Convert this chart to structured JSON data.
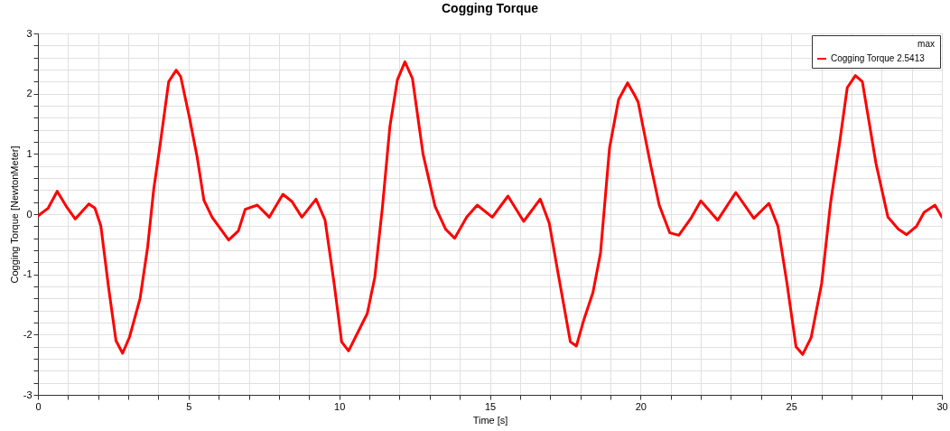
{
  "chart_data": {
    "type": "line",
    "title": "Cogging Torque",
    "xlabel": "Time [s]",
    "ylabel": "Cogging Torque [NewtonMeter]",
    "legend_title": "max",
    "annotations": [
      "2.5413"
    ],
    "legend": "top right",
    "grid": true,
    "line_style": "solid",
    "xlim": [
      0,
      30
    ],
    "ylim": [
      -3,
      3
    ],
    "xticks": [
      0,
      {
        "value": 1,
        "label": null
      },
      {
        "value": 2,
        "label": null
      },
      {
        "value": 3,
        "label": null
      },
      {
        "value": 4,
        "label": null
      },
      5,
      {
        "value": 6,
        "label": null
      },
      {
        "value": 7,
        "label": null
      },
      {
        "value": 8,
        "label": null
      },
      {
        "value": 9,
        "label": null
      },
      10,
      {
        "value": 11,
        "label": null
      },
      {
        "value": 12,
        "label": null
      },
      {
        "value": 13,
        "label": null
      },
      {
        "value": 14,
        "label": null
      },
      15,
      {
        "value": 16,
        "label": null
      },
      {
        "value": 17,
        "label": null
      },
      {
        "value": 18,
        "label": null
      },
      {
        "value": 19,
        "label": null
      },
      20,
      {
        "value": 21,
        "label": null
      },
      {
        "value": 22,
        "label": null
      },
      {
        "value": 23,
        "label": null
      },
      {
        "value": 24,
        "label": null
      },
      25,
      {
        "value": 26,
        "label": null
      },
      {
        "value": 27,
        "label": null
      },
      {
        "value": 28,
        "label": null
      },
      {
        "value": 29,
        "label": null
      },
      30
    ],
    "yticks": [
      -3,
      {
        "value": -2.8,
        "label": null
      },
      {
        "value": -2.6,
        "label": null
      },
      {
        "value": -2.4,
        "label": null
      },
      {
        "value": -2.2,
        "label": null
      },
      -2,
      {
        "value": -1.8,
        "label": null
      },
      {
        "value": -1.6,
        "label": null
      },
      {
        "value": -1.4,
        "label": null
      },
      {
        "value": -1.2,
        "label": null
      },
      -1,
      {
        "value": -0.8,
        "label": null
      },
      {
        "value": -0.6,
        "label": null
      },
      {
        "value": -0.4,
        "label": null
      },
      {
        "value": -0.2,
        "label": null
      },
      0,
      {
        "value": 0.2,
        "label": null
      },
      {
        "value": 0.4,
        "label": null
      },
      {
        "value": 0.6,
        "label": null
      },
      {
        "value": 0.8,
        "label": null
      },
      1,
      {
        "value": 1.2,
        "label": null
      },
      {
        "value": 1.4,
        "label": null
      },
      {
        "value": 1.6,
        "label": null
      },
      {
        "value": 1.8,
        "label": null
      },
      2,
      {
        "value": 2.2,
        "label": null
      },
      {
        "value": 2.4,
        "label": null
      },
      {
        "value": 2.6,
        "label": null
      },
      {
        "value": 2.8,
        "label": null
      },
      3
    ],
    "series": [
      {
        "name": "Cogging Torque",
        "color": "#ff0000",
        "x": [
          0,
          0.34,
          0.64,
          0.94,
          1.24,
          1.69,
          1.89,
          2.09,
          2.34,
          2.59,
          2.81,
          3.04,
          3.39,
          3.64,
          3.84,
          4.04,
          4.34,
          4.59,
          4.74,
          5.03,
          5.28,
          5.51,
          5.78,
          6.33,
          6.65,
          6.88,
          7.28,
          7.68,
          8.13,
          8.43,
          8.76,
          9.23,
          9.53,
          9.83,
          10.08,
          10.31,
          10.63,
          10.93,
          11.18,
          11.43,
          11.68,
          11.93,
          12.18,
          12.43,
          12.78,
          13.18,
          13.53,
          13.83,
          14.23,
          14.58,
          15.08,
          15.6,
          16.12,
          16.67,
          16.97,
          17.27,
          17.67,
          17.87,
          18.12,
          18.42,
          18.67,
          18.97,
          19.27,
          19.57,
          19.82,
          19.92,
          20.32,
          20.62,
          20.97,
          21.27,
          21.67,
          22.0,
          22.56,
          23.16,
          23.76,
          24.26,
          24.56,
          24.86,
          25.16,
          25.38,
          25.66,
          26.01,
          26.31,
          26.61,
          26.86,
          27.13,
          27.36,
          27.81,
          28.21,
          28.56,
          28.83,
          29.16,
          29.41,
          29.77,
          30
        ],
        "values": [
          -0.03,
          0.1,
          0.38,
          0.13,
          -0.08,
          0.17,
          0.1,
          -0.2,
          -1.2,
          -2.1,
          -2.31,
          -2.04,
          -1.4,
          -0.55,
          0.4,
          1.1,
          2.2,
          2.39,
          2.28,
          1.6,
          0.96,
          0.23,
          -0.05,
          -0.43,
          -0.28,
          0.08,
          0.15,
          -0.05,
          0.33,
          0.21,
          -0.05,
          0.25,
          -0.1,
          -1.15,
          -2.12,
          -2.27,
          -1.95,
          -1.65,
          -1.05,
          0.1,
          1.45,
          2.23,
          2.53,
          2.25,
          1.0,
          0.13,
          -0.25,
          -0.4,
          -0.05,
          0.15,
          -0.05,
          0.3,
          -0.12,
          0.25,
          -0.15,
          -1.0,
          -2.12,
          -2.19,
          -1.75,
          -1.3,
          -0.65,
          1.1,
          1.9,
          2.18,
          1.96,
          1.86,
          0.85,
          0.15,
          -0.31,
          -0.35,
          -0.07,
          0.22,
          -0.1,
          0.36,
          -0.07,
          0.18,
          -0.2,
          -1.15,
          -2.2,
          -2.33,
          -2.05,
          -1.15,
          0.2,
          1.2,
          2.1,
          2.3,
          2.2,
          0.85,
          -0.05,
          -0.25,
          -0.34,
          -0.2,
          0.03,
          0.15,
          -0.05
        ]
      }
    ]
  }
}
